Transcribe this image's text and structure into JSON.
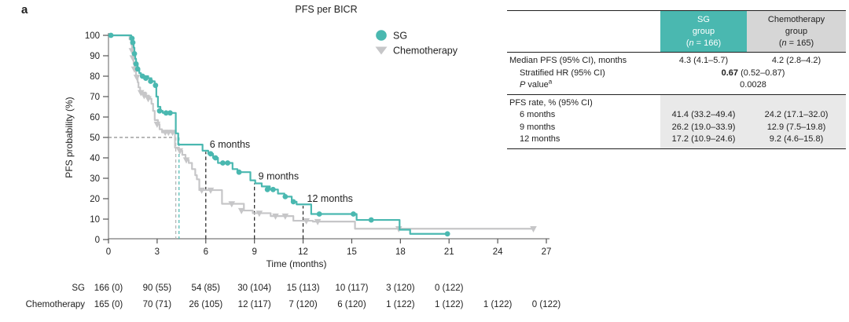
{
  "panel_label": "a",
  "title": "PFS per BICR",
  "colors": {
    "sg_teal": "#4ab8b0",
    "chemo_gray": "#c6c6c8",
    "header_gray_bg": "#d6d6d6",
    "rate_section_bg": "#e9e9e9",
    "axis_gray": "#8f8f8f",
    "dashed_guide_gray": "#8d8d8d",
    "dashed_guide_black": "#2f2f2f",
    "header_sg_text": "#ffffff"
  },
  "chart_data": {
    "type": "line",
    "subtype": "kaplan-meier-step",
    "title": "PFS per BICR",
    "xlabel": "Time (months)",
    "ylabel": "PFS probability (%)",
    "xlim": [
      0,
      27
    ],
    "ylim": [
      0,
      100
    ],
    "xticks": [
      0,
      3,
      6,
      9,
      12,
      15,
      18,
      21,
      24,
      27
    ],
    "yticks": [
      0,
      10,
      20,
      30,
      40,
      50,
      60,
      70,
      80,
      90,
      100
    ],
    "grid": "off",
    "legend_position": "top-right-inside",
    "legend": [
      {
        "name": "SG",
        "marker": "circle",
        "color": "#4ab8b0"
      },
      {
        "name": "Chemotherapy",
        "marker": "triangle-down",
        "color": "#c6c6c8"
      }
    ],
    "series": [
      {
        "name": "Chemotherapy",
        "color": "#c6c6c8",
        "end_t": 26.3,
        "steps": [
          [
            0,
            100
          ],
          [
            1.3,
            98
          ],
          [
            1.4,
            95.5
          ],
          [
            1.45,
            92.5
          ],
          [
            1.5,
            89
          ],
          [
            1.55,
            86
          ],
          [
            1.6,
            83.5
          ],
          [
            1.7,
            79.5
          ],
          [
            1.8,
            77
          ],
          [
            1.85,
            74.5
          ],
          [
            1.95,
            72
          ],
          [
            2.3,
            70.5
          ],
          [
            2.5,
            69
          ],
          [
            2.65,
            66.5
          ],
          [
            2.75,
            63
          ],
          [
            2.85,
            58.5
          ],
          [
            3.05,
            56.5
          ],
          [
            3.15,
            54
          ],
          [
            3.3,
            52.5
          ],
          [
            4.1,
            45
          ],
          [
            4.35,
            43.5
          ],
          [
            4.55,
            41.5
          ],
          [
            4.75,
            39
          ],
          [
            4.95,
            37.5
          ],
          [
            5.15,
            34.5
          ],
          [
            5.35,
            31.5
          ],
          [
            5.45,
            29.5
          ],
          [
            5.6,
            24.2
          ],
          [
            7.0,
            17.5
          ],
          [
            8.35,
            14.2
          ],
          [
            8.9,
            12.9
          ],
          [
            10.0,
            11.5
          ],
          [
            11.4,
            9.2
          ],
          [
            12.6,
            8.8
          ],
          [
            15.2,
            5.3
          ]
        ],
        "censors": [
          [
            1.45,
            92.5
          ],
          [
            1.5,
            89
          ],
          [
            1.6,
            83.5
          ],
          [
            1.75,
            79.5
          ],
          [
            2.0,
            72
          ],
          [
            2.2,
            70.5
          ],
          [
            2.45,
            69
          ],
          [
            3.0,
            56.5
          ],
          [
            3.5,
            52.5
          ],
          [
            3.7,
            52.5
          ],
          [
            3.95,
            52.5
          ],
          [
            4.4,
            43.5
          ],
          [
            4.8,
            39
          ],
          [
            5.75,
            24.2
          ],
          [
            6.3,
            24.2
          ],
          [
            7.6,
            17.5
          ],
          [
            8.2,
            14.2
          ],
          [
            9.3,
            12.9
          ],
          [
            10.3,
            11.5
          ],
          [
            10.9,
            11.5
          ],
          [
            12.2,
            9.2
          ],
          [
            12.9,
            8.8
          ],
          [
            17.9,
            5.3
          ],
          [
            26.2,
            5.3
          ]
        ]
      },
      {
        "name": "SG",
        "color": "#4ab8b0",
        "end_t": 21,
        "steps": [
          [
            0,
            100
          ],
          [
            1.4,
            98.5
          ],
          [
            1.5,
            96.5
          ],
          [
            1.55,
            94
          ],
          [
            1.6,
            91
          ],
          [
            1.65,
            88.5
          ],
          [
            1.7,
            86
          ],
          [
            1.8,
            83.5
          ],
          [
            1.9,
            81.5
          ],
          [
            2.0,
            80
          ],
          [
            2.45,
            79
          ],
          [
            2.65,
            77.5
          ],
          [
            2.85,
            75.5
          ],
          [
            2.95,
            70
          ],
          [
            3.05,
            65
          ],
          [
            3.2,
            63
          ],
          [
            3.35,
            62
          ],
          [
            4.15,
            52
          ],
          [
            4.3,
            46.5
          ],
          [
            5.8,
            43.5
          ],
          [
            6.15,
            42
          ],
          [
            6.45,
            40
          ],
          [
            6.75,
            37.5
          ],
          [
            7.65,
            34.5
          ],
          [
            7.95,
            33
          ],
          [
            8.75,
            29
          ],
          [
            9.05,
            27.5
          ],
          [
            9.45,
            26
          ],
          [
            9.95,
            24.5
          ],
          [
            10.45,
            22.5
          ],
          [
            10.85,
            21
          ],
          [
            11.3,
            18.5
          ],
          [
            11.6,
            17.2
          ],
          [
            12.5,
            12.5
          ],
          [
            15.3,
            9.6
          ],
          [
            17.95,
            4.8
          ],
          [
            18.6,
            2.8
          ]
        ],
        "censors": [
          [
            0.15,
            100
          ],
          [
            1.45,
            98.5
          ],
          [
            1.5,
            96.5
          ],
          [
            1.6,
            91
          ],
          [
            1.7,
            86
          ],
          [
            1.8,
            83.5
          ],
          [
            2.1,
            80
          ],
          [
            2.3,
            79
          ],
          [
            2.6,
            77.5
          ],
          [
            2.9,
            75.5
          ],
          [
            3.15,
            63
          ],
          [
            3.55,
            62
          ],
          [
            3.8,
            62
          ],
          [
            6.3,
            42
          ],
          [
            6.6,
            40
          ],
          [
            7.05,
            37.5
          ],
          [
            7.35,
            37.5
          ],
          [
            8.05,
            33
          ],
          [
            9.8,
            24.5
          ],
          [
            10.15,
            24.5
          ],
          [
            10.9,
            21
          ],
          [
            11.4,
            18.5
          ],
          [
            13.0,
            12.5
          ],
          [
            15.1,
            12.5
          ],
          [
            16.2,
            9.6
          ],
          [
            20.9,
            2.8
          ]
        ]
      }
    ],
    "median_guides": {
      "y": 50,
      "sg_x": 4.35,
      "chemo_x": 4.15
    },
    "timepoint_guides": [
      {
        "t": 6,
        "top": 43,
        "label": "6 months"
      },
      {
        "t": 9,
        "top": 27.5,
        "label": "9 months"
      },
      {
        "t": 12,
        "top": 16.5,
        "label": "12 months"
      }
    ]
  },
  "risk_table": {
    "rows": [
      {
        "label": "SG",
        "values": [
          "166 (0)",
          "90 (55)",
          "54 (85)",
          "30 (104)",
          "15 (113)",
          "10 (117)",
          "3 (120)",
          "0 (122)"
        ]
      },
      {
        "label": "Chemotherapy",
        "values": [
          "165 (0)",
          "70 (71)",
          "26 (105)",
          "12 (117)",
          "7 (120)",
          "6 (120)",
          "1 (122)",
          "1 (122)",
          "1 (122)",
          "0 (122)"
        ]
      }
    ]
  },
  "results_table": {
    "col_headers": [
      {
        "line1": "SG",
        "line2": "group",
        "n_open": "(",
        "n_italic": "n",
        "n_rest": " = 166)"
      },
      {
        "line1": "Chemotherapy",
        "line2": "group",
        "n_open": "(",
        "n_italic": "n",
        "n_rest": " = 165)"
      }
    ],
    "median_row": {
      "label": "Median PFS (95% CI), months",
      "sg": "4.3 (4.1–5.7)",
      "chemo": "4.2 (2.8–4.2)"
    },
    "hr_row": {
      "label": "Stratified HR (95% CI)",
      "bold": "0.67",
      "rest": " (0.52–0.87)"
    },
    "p_row": {
      "label_italic": "P",
      "label_rest": " value",
      "sup": "a",
      "value": "0.0028"
    },
    "rate_header": "PFS rate, % (95% CI)",
    "rate_rows": [
      {
        "label": "6 months",
        "sg": "41.4 (33.2–49.4)",
        "chemo": "24.2 (17.1–32.0)"
      },
      {
        "label": "9 months",
        "sg": "26.2 (19.0–33.9)",
        "chemo": "12.9 (7.5–19.8)"
      },
      {
        "label": "12 months",
        "sg": "17.2 (10.9–24.6)",
        "chemo": "9.2 (4.6–15.8)"
      }
    ]
  }
}
